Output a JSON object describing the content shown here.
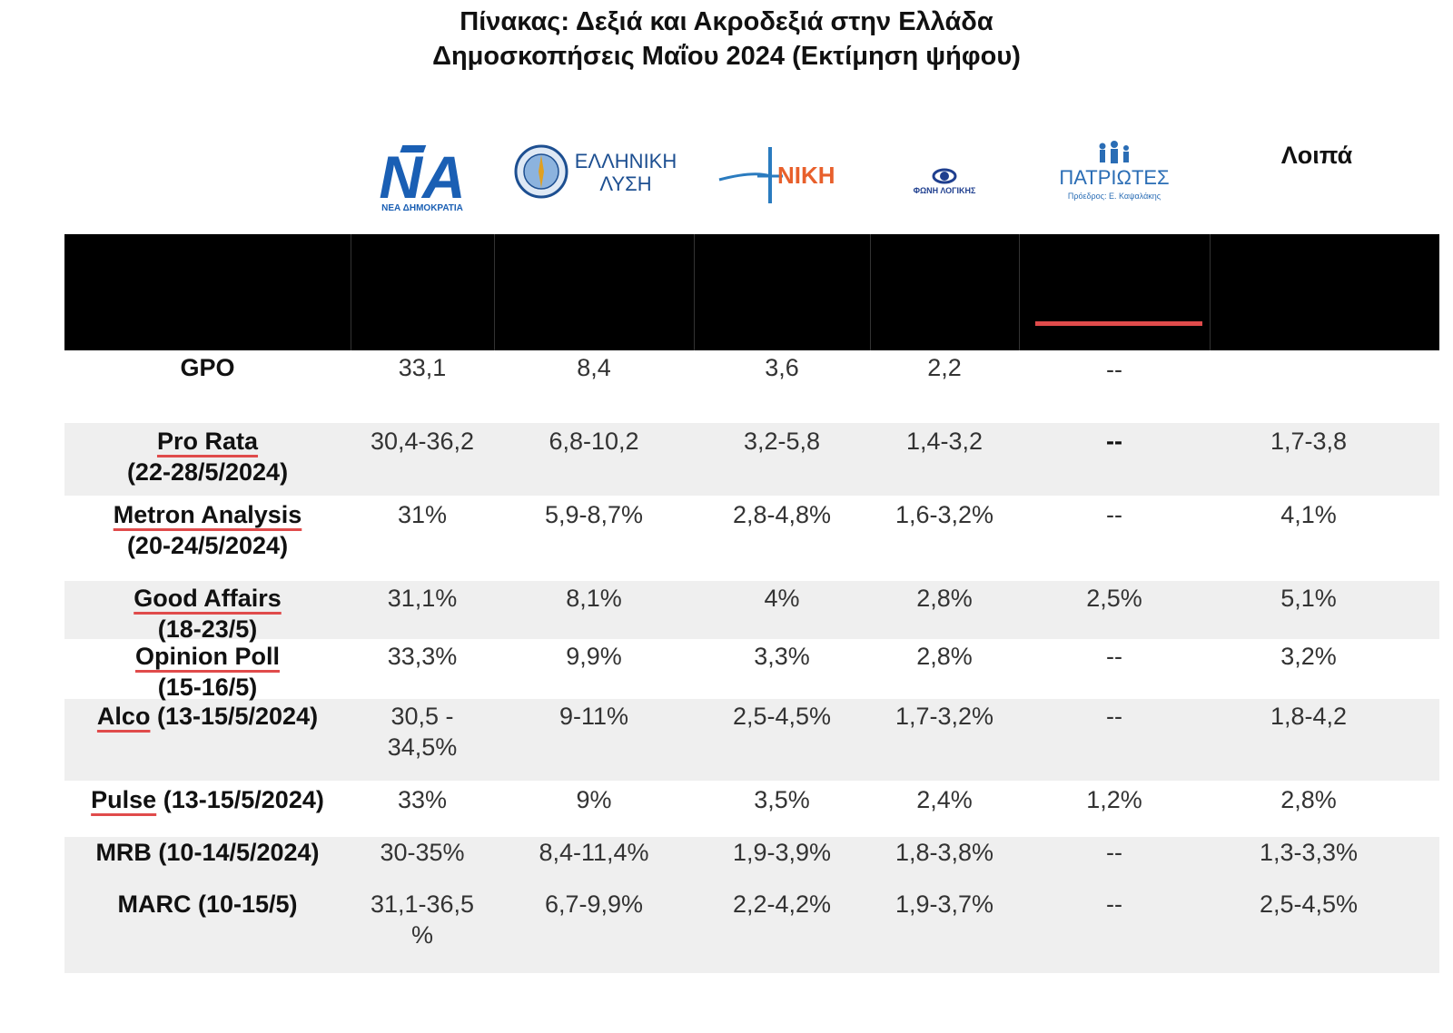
{
  "title_line1": "Πίνακας: Δεξιά και Ακροδεξιά στην Ελλάδα",
  "title_line2": "Δημοσκοπήσεις Μαΐου 2024 (Εκτίμηση ψήφου)",
  "parties": {
    "nd": {
      "logo_text": "ΝΑ",
      "subtitle": "ΝΕΑ ΔΗΜΟΚΡΑΤΙΑ",
      "icon": "nd-logo-icon",
      "color": "#1a5fb4"
    },
    "el": {
      "line1": "ΕΛΛΗΝΙΚΗ",
      "line2": "ΛΥΣΗ",
      "icon": "elliniki-lysi-logo-icon",
      "color": "#1d4f91"
    },
    "niki": {
      "name": "ΝΙΚΗ",
      "icon": "niki-logo-icon",
      "color": "#e8602c",
      "accent": "#2a7bbf"
    },
    "foni": {
      "name": "ΦΩΝΗ ΛΟΓΙΚΗΣ",
      "icon": "foni-logikis-logo-icon",
      "color": "#1f3f8f"
    },
    "patriotes": {
      "name": "ΠΑΤΡΙΩΤΕΣ",
      "subtitle": "Πρόεδρος: Ε. Καψαλάκης",
      "icon": "patriotes-logo-icon",
      "color": "#2a6db5"
    },
    "others": {
      "label": "Λοιπά"
    }
  },
  "rows": [
    {
      "pollster": "GPO",
      "date": "",
      "nd": "33,1",
      "el": "8,4",
      "niki": "3,6",
      "foni": "2,2",
      "patriotes": "--",
      "others": ""
    },
    {
      "pollster": "Pro Rata",
      "date": "(22-28/5/2024)",
      "nd": "30,4-36,2",
      "el": "6,8-10,2",
      "niki": "3,2-5,8",
      "foni": "1,4-3,2",
      "patriotes": "--",
      "others": "1,7-3,8"
    },
    {
      "pollster": "Metron Analysis",
      "date": "(20-24/5/2024)",
      "nd": "31%",
      "el": "5,9-8,7%",
      "niki": "2,8-4,8%",
      "foni": "1,6-3,2%",
      "patriotes": "--",
      "others": "4,1%"
    },
    {
      "pollster": "Good Affairs",
      "date": "(18-23/5)",
      "nd": "31,1%",
      "el": "8,1%",
      "niki": "4%",
      "foni": "2,8%",
      "patriotes": "2,5%",
      "others": "5,1%"
    },
    {
      "pollster": "Opinion Poll",
      "date": "(15-16/5)",
      "nd": "33,3%",
      "el": "9,9%",
      "niki": "3,3%",
      "foni": "2,8%",
      "patriotes": "--",
      "others": "3,2%"
    },
    {
      "pollster": "Alco",
      "date": "(13-15/5/2024)",
      "nd": "30,5 -",
      "nd2": "34,5%",
      "el": "9-11%",
      "niki": "2,5-4,5%",
      "foni": "1,7-3,2%",
      "patriotes": "--",
      "others": "1,8-4,2"
    },
    {
      "pollster": "Pulse",
      "date": "(13-15/5/2024)",
      "nd": "33%",
      "el": "9%",
      "niki": "3,5%",
      "foni": "2,4%",
      "patriotes": "1,2%",
      "others": "2,8%"
    },
    {
      "pollster": "MRB (10-14/5/2024)",
      "date": "",
      "nd": "30-35%",
      "el": "8,4-11,4%",
      "niki": "1,9-3,9%",
      "foni": "1,8-3,8%",
      "patriotes": "--",
      "others": "1,3-3,3%"
    },
    {
      "pollster": "MARC (10-15/5)",
      "date": "",
      "nd": "31,1-36,5",
      "nd2": "%",
      "el": "6,7-9,9%",
      "niki": "2,2-4,2%",
      "foni": "1,9-3,7%",
      "patriotes": "--",
      "others": "2,5-4,5%"
    }
  ]
}
